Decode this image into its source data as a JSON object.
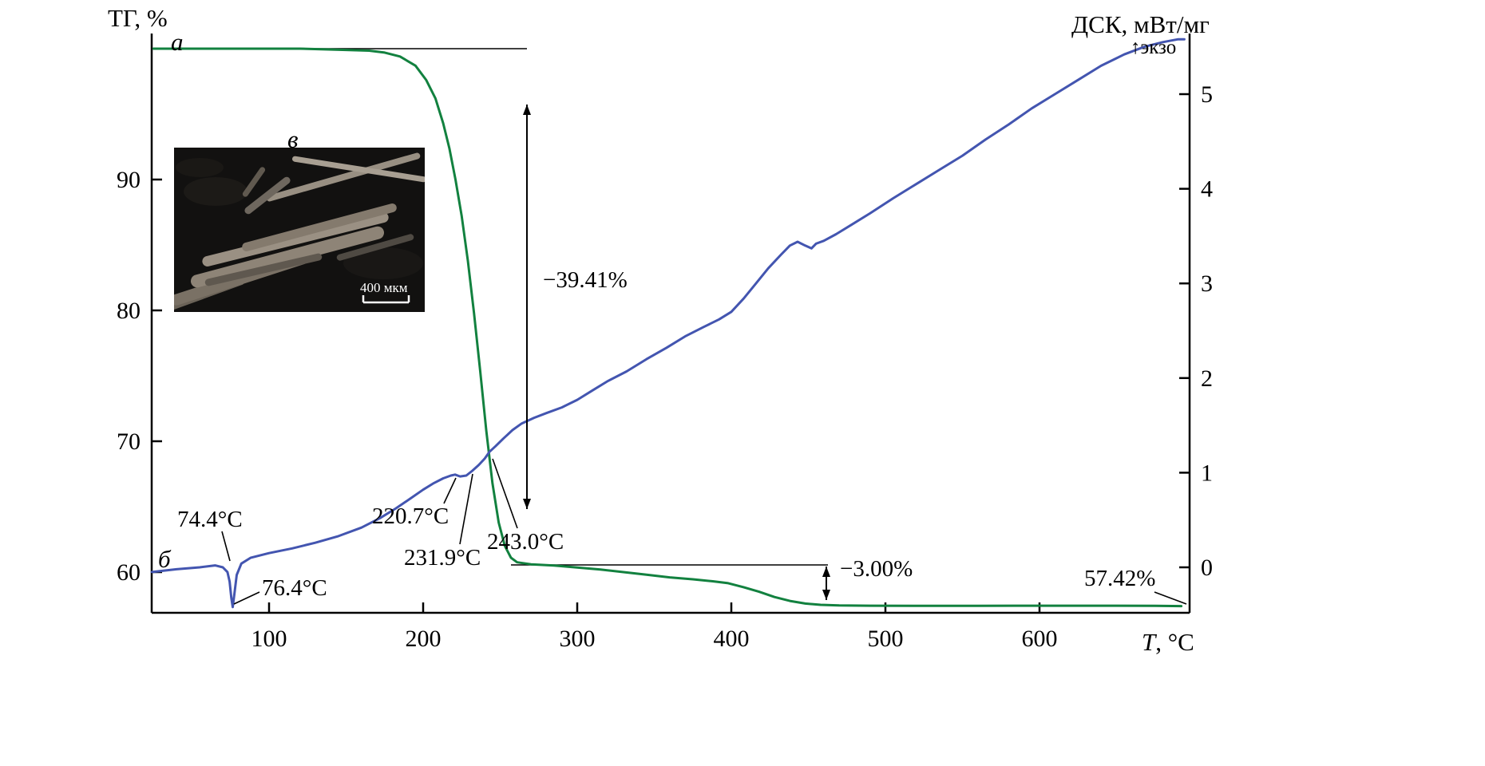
{
  "figure": {
    "left_axis_title": "ТГ, %",
    "right_axis_title": "ДСК, мВт/мг",
    "exo_arrow": "↑",
    "exo_label": "экзо",
    "x_axis_title_var": "T",
    "x_axis_title_unit": ", °C"
  },
  "chart_data": {
    "type": "line",
    "title": "",
    "x_axis": {
      "label": "T, °C",
      "ticks": [
        100,
        200,
        300,
        400,
        500,
        600
      ],
      "range": [
        24,
        697
      ]
    },
    "left_y_axis": {
      "label": "ТГ, %",
      "ticks": [
        90,
        80,
        70,
        60
      ],
      "range": [
        56.8,
        101
      ]
    },
    "right_y_axis": {
      "label": "ДСК, мВт/мг",
      "ticks": [
        5,
        4,
        3,
        2,
        1,
        0
      ],
      "range": [
        -0.55,
        5.7
      ],
      "orientation_note": "экзо (exo) up"
    },
    "grid": false,
    "legend": "none",
    "curve_labels": {
      "tg": "a",
      "dsc": "б",
      "inset": "в"
    },
    "series": [
      {
        "id": "tg",
        "name": "ТГ",
        "axis": "left",
        "color": "#12813f",
        "points": [
          [
            25,
            100
          ],
          [
            80,
            100
          ],
          [
            120,
            100
          ],
          [
            150,
            99.9
          ],
          [
            165,
            99.85
          ],
          [
            175,
            99.7
          ],
          [
            185,
            99.4
          ],
          [
            195,
            98.7
          ],
          [
            202,
            97.6
          ],
          [
            208,
            96.2
          ],
          [
            213,
            94.3
          ],
          [
            217,
            92.4
          ],
          [
            221,
            90.0
          ],
          [
            225,
            87.2
          ],
          [
            229,
            83.8
          ],
          [
            233,
            79.8
          ],
          [
            237,
            75.4
          ],
          [
            241,
            70.8
          ],
          [
            245,
            66.8
          ],
          [
            249,
            63.8
          ],
          [
            253,
            62.0
          ],
          [
            257,
            61.1
          ],
          [
            261,
            60.75
          ],
          [
            270,
            60.6
          ],
          [
            285,
            60.5
          ],
          [
            300,
            60.35
          ],
          [
            315,
            60.2
          ],
          [
            330,
            60.0
          ],
          [
            345,
            59.8
          ],
          [
            360,
            59.6
          ],
          [
            375,
            59.45
          ],
          [
            388,
            59.3
          ],
          [
            398,
            59.15
          ],
          [
            408,
            58.85
          ],
          [
            418,
            58.5
          ],
          [
            428,
            58.1
          ],
          [
            438,
            57.8
          ],
          [
            448,
            57.6
          ],
          [
            458,
            57.5
          ],
          [
            470,
            57.45
          ],
          [
            490,
            57.43
          ],
          [
            520,
            57.42
          ],
          [
            560,
            57.42
          ],
          [
            600,
            57.43
          ],
          [
            640,
            57.43
          ],
          [
            675,
            57.42
          ],
          [
            692,
            57.4
          ]
        ]
      },
      {
        "id": "dsc",
        "name": "ДСК",
        "axis": "right",
        "color": "#4355b0",
        "points": [
          [
            24,
            -0.05
          ],
          [
            40,
            -0.02
          ],
          [
            55,
            0.0
          ],
          [
            65,
            0.02
          ],
          [
            70,
            0.0
          ],
          [
            73,
            -0.05
          ],
          [
            74.4,
            -0.15
          ],
          [
            75.5,
            -0.32
          ],
          [
            76.4,
            -0.42
          ],
          [
            77.5,
            -0.28
          ],
          [
            79,
            -0.08
          ],
          [
            82,
            0.04
          ],
          [
            88,
            0.1
          ],
          [
            100,
            0.15
          ],
          [
            115,
            0.2
          ],
          [
            130,
            0.26
          ],
          [
            145,
            0.33
          ],
          [
            160,
            0.42
          ],
          [
            172,
            0.52
          ],
          [
            182,
            0.62
          ],
          [
            192,
            0.73
          ],
          [
            200,
            0.82
          ],
          [
            207,
            0.89
          ],
          [
            213,
            0.94
          ],
          [
            218,
            0.97
          ],
          [
            220.7,
            0.98
          ],
          [
            224,
            0.96
          ],
          [
            228,
            0.97
          ],
          [
            231.9,
            1.02
          ],
          [
            236,
            1.08
          ],
          [
            240,
            1.15
          ],
          [
            243,
            1.22
          ],
          [
            247,
            1.28
          ],
          [
            252,
            1.36
          ],
          [
            258,
            1.45
          ],
          [
            264,
            1.52
          ],
          [
            272,
            1.58
          ],
          [
            280,
            1.63
          ],
          [
            290,
            1.69
          ],
          [
            300,
            1.77
          ],
          [
            310,
            1.87
          ],
          [
            320,
            1.97
          ],
          [
            332,
            2.07
          ],
          [
            345,
            2.2
          ],
          [
            358,
            2.32
          ],
          [
            370,
            2.44
          ],
          [
            382,
            2.54
          ],
          [
            392,
            2.62
          ],
          [
            400,
            2.7
          ],
          [
            408,
            2.84
          ],
          [
            416,
            3.0
          ],
          [
            424,
            3.16
          ],
          [
            432,
            3.3
          ],
          [
            438,
            3.4
          ],
          [
            443,
            3.44
          ],
          [
            448,
            3.4
          ],
          [
            452,
            3.37
          ],
          [
            455,
            3.42
          ],
          [
            460,
            3.45
          ],
          [
            468,
            3.52
          ],
          [
            478,
            3.62
          ],
          [
            490,
            3.74
          ],
          [
            505,
            3.9
          ],
          [
            520,
            4.05
          ],
          [
            535,
            4.2
          ],
          [
            550,
            4.35
          ],
          [
            565,
            4.52
          ],
          [
            580,
            4.68
          ],
          [
            595,
            4.85
          ],
          [
            610,
            5.0
          ],
          [
            625,
            5.15
          ],
          [
            640,
            5.3
          ],
          [
            655,
            5.42
          ],
          [
            668,
            5.5
          ],
          [
            680,
            5.55
          ],
          [
            690,
            5.58
          ],
          [
            694,
            5.58
          ]
        ]
      }
    ],
    "annotations": {
      "peak_onset": "74.4°C",
      "peak_min": "76.4°C",
      "t1": "220.7°C",
      "t2": "231.9°C",
      "t3": "243.0°C",
      "mass_loss_1": "−39.41%",
      "mass_loss_2": "−3.00%",
      "residue": "57.42%"
    },
    "inset": {
      "label": "в",
      "scale_label": "400 мкм",
      "description": "SEM micrograph of elongated fibers"
    }
  }
}
